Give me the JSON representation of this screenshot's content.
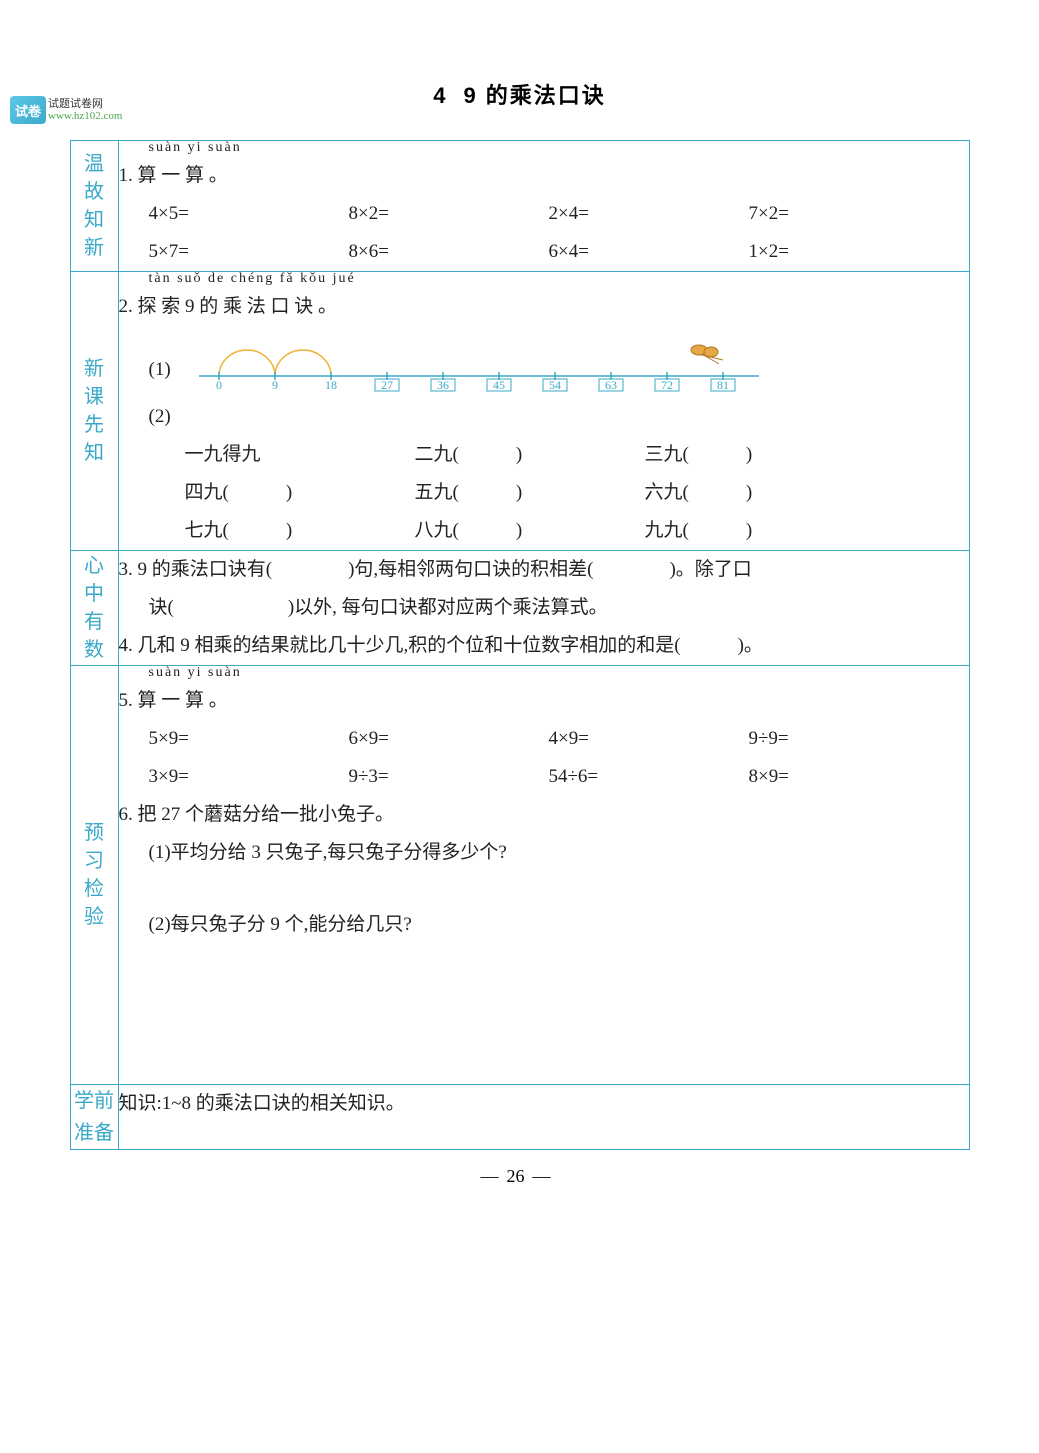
{
  "logo": {
    "icon": "试卷",
    "cn": "试题试卷网",
    "url": "www.hz102.com"
  },
  "title": {
    "num": "4",
    "text": "9 的乘法口诀"
  },
  "colors": {
    "border": "#3aa9c9",
    "label": "#3aa9c9",
    "diagram_line": "#3aa9c9",
    "diagram_num": "#3aa9c9",
    "butterfly": "#e08a2c"
  },
  "sections": {
    "wen": {
      "label": [
        "温",
        "故",
        "知",
        "新"
      ],
      "q1_pinyin": "suàn yi suàn",
      "q1_head": "1. 算 一 算 。",
      "exprs": [
        [
          "4×5=",
          "8×2=",
          "2×4=",
          "7×2="
        ],
        [
          "5×7=",
          "8×6=",
          "6×4=",
          "1×2="
        ]
      ]
    },
    "xin": {
      "label": [
        "新",
        "课",
        "先",
        "知"
      ],
      "q2_pinyin": "tàn suǒ    de chéng fǎ kǒu jué",
      "q2_head": "2. 探 索 9 的 乘 法 口 诀 。",
      "q2_sub1": "(1)",
      "diagram_nums": [
        "0",
        "9",
        "18",
        "27",
        "36",
        "45",
        "54",
        "63",
        "72",
        "81"
      ],
      "q2_sub2": "(2)",
      "fills": [
        [
          "一九得九",
          "二九(　　　)",
          "三九(　　　)"
        ],
        [
          "四九(　　　)",
          "五九(　　　)",
          "六九(　　　)"
        ],
        [
          "七九(　　　)",
          "八九(　　　)",
          "九九(　　　)"
        ]
      ]
    },
    "xinzhong": {
      "label": [
        "心",
        "中",
        "有",
        "数"
      ],
      "line3": "3. 9 的乘法口诀有(　　　　)句,每相邻两句口诀的积相差(　　　　)。除了口",
      "line3b": "诀(　　　　　　)以外, 每句口诀都对应两个乘法算式。",
      "line4": "4. 几和 9 相乘的结果就比几十少几,积的个位和十位数字相加的和是(　　　)。"
    },
    "yuxi": {
      "label": [
        "预",
        "习",
        "检",
        "验"
      ],
      "q5_pinyin": "suàn yi suàn",
      "q5_head": "5. 算 一 算 。",
      "exprs": [
        [
          "5×9=",
          "6×9=",
          "4×9=",
          "9÷9="
        ],
        [
          "3×9=",
          "9÷3=",
          "54÷6=",
          "8×9="
        ]
      ],
      "q6_head": "6. 把 27 个蘑菇分给一批小兔子。",
      "q6_1": "(1)平均分给 3 只兔子,每只兔子分得多少个?",
      "q6_2": "(2)每只兔子分 9 个,能分给几只?"
    },
    "xueqian": {
      "label": [
        "学前",
        "准备"
      ],
      "text": "知识:1~8 的乘法口诀的相关知识。"
    }
  },
  "page_num": "26"
}
